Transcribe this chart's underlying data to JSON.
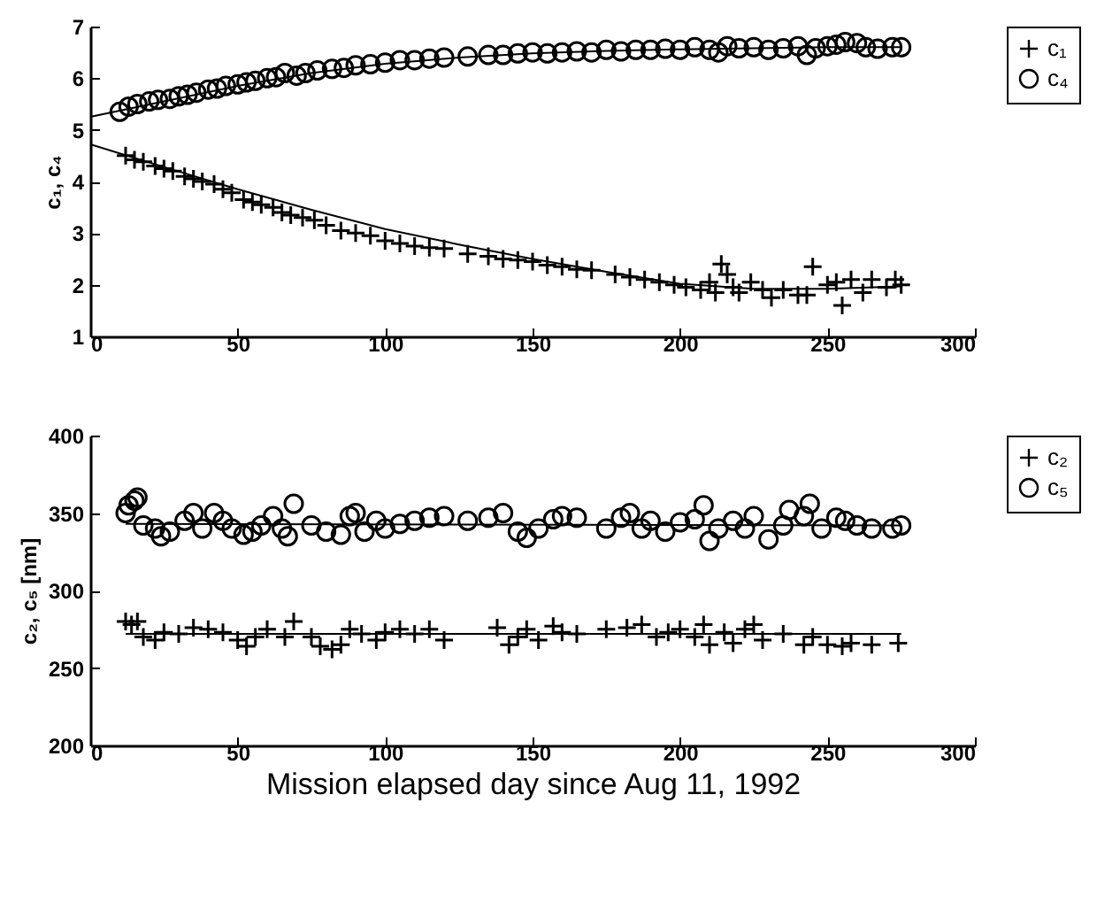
{
  "chart_data": [
    {
      "type": "scatter",
      "ylabel": "c₁, c₄",
      "xlim": [
        0,
        300
      ],
      "xticks": [
        0,
        50,
        100,
        150,
        200,
        250,
        300
      ],
      "ylim": [
        1,
        7
      ],
      "yticks": [
        1,
        2,
        3,
        4,
        5,
        6,
        7
      ],
      "legend": "right",
      "grid": false,
      "series": [
        {
          "name": "c₁",
          "color": "#000000",
          "marker": "cross",
          "x": [
            12,
            15,
            18,
            22,
            25,
            28,
            32,
            35,
            38,
            42,
            45,
            48,
            52,
            55,
            58,
            62,
            65,
            68,
            72,
            76,
            80,
            85,
            90,
            95,
            100,
            105,
            110,
            115,
            120,
            128,
            135,
            140,
            145,
            150,
            155,
            160,
            165,
            170,
            178,
            183,
            188,
            193,
            198,
            202,
            207,
            210,
            212,
            214,
            216,
            218,
            220,
            224,
            228,
            231,
            235,
            240,
            243,
            245,
            250,
            253,
            255,
            258,
            262,
            265,
            270,
            273,
            275
          ],
          "values": [
            4.5,
            4.42,
            4.38,
            4.3,
            4.25,
            4.2,
            4.1,
            4.05,
            4.0,
            3.95,
            3.85,
            3.78,
            3.65,
            3.6,
            3.55,
            3.5,
            3.4,
            3.35,
            3.3,
            3.25,
            3.15,
            3.05,
            3.0,
            2.95,
            2.85,
            2.8,
            2.75,
            2.72,
            2.7,
            2.6,
            2.55,
            2.5,
            2.48,
            2.45,
            2.38,
            2.35,
            2.3,
            2.28,
            2.2,
            2.15,
            2.1,
            2.05,
            2.0,
            1.95,
            1.9,
            2.05,
            1.85,
            2.4,
            2.2,
            1.95,
            1.85,
            2.05,
            1.9,
            1.75,
            1.9,
            1.8,
            1.8,
            2.35,
            2.0,
            2.05,
            1.6,
            2.1,
            1.85,
            2.1,
            1.95,
            2.1,
            2.0
          ]
        },
        {
          "name": "c₄",
          "color": "#000000",
          "marker": "circle",
          "x": [
            10,
            13,
            16,
            20,
            23,
            27,
            30,
            33,
            36,
            40,
            43,
            46,
            50,
            53,
            56,
            60,
            63,
            66,
            70,
            73,
            77,
            82,
            86,
            90,
            95,
            100,
            105,
            110,
            115,
            120,
            128,
            135,
            140,
            145,
            150,
            155,
            160,
            165,
            170,
            175,
            180,
            185,
            190,
            195,
            200,
            205,
            210,
            213,
            216,
            220,
            225,
            230,
            235,
            240,
            243,
            246,
            250,
            253,
            256,
            260,
            263,
            267,
            272,
            275
          ],
          "values": [
            5.35,
            5.45,
            5.5,
            5.55,
            5.58,
            5.6,
            5.65,
            5.68,
            5.72,
            5.78,
            5.8,
            5.85,
            5.88,
            5.92,
            5.95,
            6.0,
            6.02,
            6.1,
            6.05,
            6.1,
            6.15,
            6.18,
            6.2,
            6.25,
            6.27,
            6.3,
            6.35,
            6.35,
            6.38,
            6.4,
            6.42,
            6.45,
            6.45,
            6.48,
            6.5,
            6.48,
            6.5,
            6.52,
            6.5,
            6.55,
            6.52,
            6.55,
            6.55,
            6.57,
            6.55,
            6.6,
            6.55,
            6.5,
            6.62,
            6.58,
            6.6,
            6.55,
            6.58,
            6.62,
            6.45,
            6.58,
            6.62,
            6.65,
            6.7,
            6.68,
            6.6,
            6.57,
            6.6,
            6.6
          ]
        },
        {
          "type": "line",
          "color": "#000000",
          "x": [
            0,
            25,
            50,
            75,
            100,
            125,
            150,
            175,
            200,
            225,
            250,
            275
          ],
          "values": [
            4.72,
            4.28,
            3.85,
            3.45,
            3.08,
            2.78,
            2.5,
            2.25,
            2.02,
            1.92,
            1.92,
            1.97
          ]
        },
        {
          "type": "line",
          "color": "#000000",
          "x": [
            0,
            25,
            50,
            75,
            100,
            125,
            150,
            175,
            200,
            225,
            250,
            275
          ],
          "values": [
            5.25,
            5.55,
            5.85,
            6.1,
            6.28,
            6.4,
            6.48,
            6.53,
            6.56,
            6.58,
            6.6,
            6.6
          ]
        }
      ]
    },
    {
      "type": "scatter",
      "xlabel": "Mission elapsed day since Aug 11, 1992",
      "ylabel": "c₂, c₅ [nm]",
      "xlim": [
        0,
        300
      ],
      "xticks": [
        0,
        50,
        100,
        150,
        200,
        250,
        300
      ],
      "ylim": [
        200,
        400
      ],
      "yticks": [
        200,
        250,
        300,
        350,
        400
      ],
      "legend": "right",
      "grid": false,
      "series": [
        {
          "name": "c₂",
          "color": "#000000",
          "marker": "cross",
          "x": [
            12,
            14,
            16,
            18,
            22,
            25,
            30,
            35,
            40,
            45,
            50,
            53,
            56,
            60,
            66,
            69,
            75,
            78,
            82,
            85,
            88,
            92,
            97,
            100,
            105,
            110,
            115,
            120,
            138,
            142,
            145,
            148,
            152,
            157,
            160,
            165,
            175,
            182,
            187,
            192,
            196,
            200,
            205,
            208,
            210,
            215,
            218,
            222,
            225,
            228,
            235,
            242,
            245,
            250,
            255,
            258,
            265,
            274
          ],
          "values": [
            280,
            278,
            280,
            270,
            268,
            273,
            272,
            276,
            275,
            273,
            268,
            264,
            270,
            275,
            270,
            280,
            270,
            264,
            262,
            265,
            275,
            272,
            268,
            273,
            275,
            272,
            275,
            268,
            276,
            265,
            270,
            275,
            268,
            277,
            273,
            272,
            275,
            276,
            278,
            270,
            273,
            275,
            270,
            278,
            265,
            273,
            266,
            275,
            278,
            268,
            272,
            265,
            270,
            265,
            264,
            266,
            265,
            266
          ]
        },
        {
          "name": "c₅",
          "color": "#000000",
          "marker": "circle",
          "x": [
            12,
            13,
            15,
            16,
            18,
            22,
            24,
            27,
            32,
            35,
            38,
            42,
            45,
            48,
            52,
            55,
            58,
            62,
            65,
            67,
            69,
            75,
            80,
            85,
            88,
            90,
            93,
            97,
            100,
            105,
            110,
            115,
            120,
            128,
            135,
            140,
            145,
            148,
            152,
            157,
            160,
            165,
            175,
            180,
            183,
            187,
            190,
            195,
            200,
            205,
            208,
            210,
            213,
            218,
            222,
            225,
            230,
            235,
            237,
            242,
            244,
            248,
            253,
            256,
            260,
            265,
            272,
            275
          ],
          "values": [
            350,
            355,
            358,
            360,
            342,
            340,
            335,
            338,
            345,
            350,
            340,
            350,
            345,
            340,
            336,
            338,
            342,
            348,
            340,
            335,
            356,
            342,
            338,
            336,
            348,
            350,
            338,
            345,
            340,
            343,
            345,
            347,
            348,
            345,
            347,
            350,
            338,
            334,
            340,
            346,
            348,
            347,
            340,
            347,
            350,
            340,
            345,
            338,
            344,
            346,
            355,
            332,
            340,
            345,
            340,
            348,
            333,
            342,
            352,
            348,
            356,
            340,
            347,
            345,
            342,
            340,
            340,
            342
          ]
        },
        {
          "type": "line",
          "color": "#000000",
          "x": [
            12,
            275
          ],
          "values": [
            272,
            272
          ]
        },
        {
          "type": "line",
          "color": "#000000",
          "x": [
            12,
            275
          ],
          "values": [
            343,
            342
          ]
        }
      ]
    }
  ]
}
